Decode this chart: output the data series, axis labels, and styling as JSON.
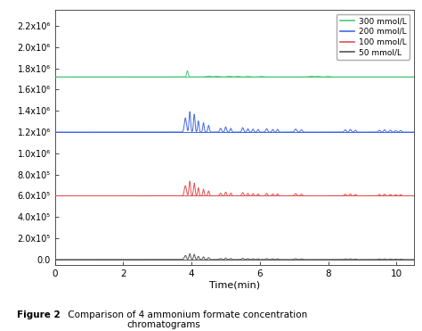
{
  "xlabel": "Time(min)",
  "xlim": [
    0,
    10.5
  ],
  "ylim": [
    -50000.0,
    2350000.0
  ],
  "ytick_vals": [
    0.0,
    200000,
    400000,
    600000,
    800000,
    1000000,
    1200000,
    1400000,
    1600000,
    1800000,
    2000000,
    2200000
  ],
  "ytick_labels": [
    "0.0",
    "2.0x10⁵",
    "4.0x10⁵",
    "6.0x10⁵",
    "8.0x10⁵",
    "1.0x10⁶",
    "1.2x10⁶",
    "1.4x10⁶",
    "1.6x10⁶",
    "1.8x10⁶",
    "2.0x10⁶",
    "2.2x10⁶"
  ],
  "xticks": [
    0,
    2,
    4,
    6,
    8,
    10
  ],
  "legend_labels": [
    "300 mmol/L",
    "200 mmol/L",
    "100 mmol/L",
    "50 mmol/L"
  ],
  "legend_colors": [
    "#50c878",
    "#4169e1",
    "#e05050",
    "#555555"
  ],
  "baselines": [
    1720000,
    1200000,
    600000,
    0
  ],
  "figsize": [
    4.74,
    3.71
  ],
  "dpi": 100,
  "caption_bold": "Figure 2",
  "caption_normal": " Comparison of 4 ammonium formate concentration\n             chromatograms"
}
